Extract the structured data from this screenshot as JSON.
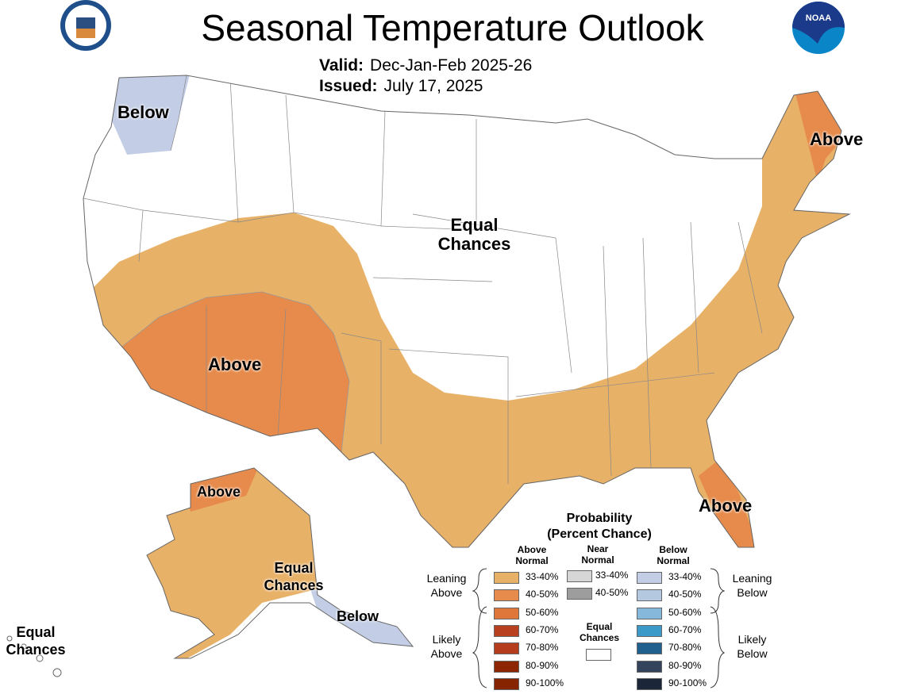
{
  "header": {
    "title": "Seasonal Temperature Outlook",
    "valid_label": "Valid:",
    "valid_value": "Dec-Jan-Feb 2025-26",
    "issued_label": "Issued:",
    "issued_value": "July 17, 2025",
    "left_logo": "DEPARTMENT OF COMMERCE",
    "right_logo": "NOAA"
  },
  "map_labels": {
    "nw_below": "Below",
    "ne_above": "Above",
    "center_ec": "Equal Chances",
    "sw_above": "Above",
    "fl_above": "Above",
    "ak_above": "Above",
    "ak_ec": "Equal Chances",
    "ak_below": "Below",
    "hi_ec": "Equal Chances"
  },
  "colors": {
    "above_33_40": "#e8b168",
    "above_40_50": "#e68b4b",
    "below_33_40": "#c3cde5",
    "equal_chances": "#ffffff"
  },
  "legend": {
    "title": "Probability",
    "subtitle": "(Percent Chance)",
    "above_header": "Above Normal",
    "near_header": "Near Normal",
    "below_header": "Below Normal",
    "leaning_above": "Leaning Above",
    "likely_above": "Likely Above",
    "leaning_below": "Leaning Below",
    "likely_below": "Likely Below",
    "equal_chances": "Equal Chances",
    "above": [
      {
        "label": "33-40%",
        "color": "#e8b168"
      },
      {
        "label": "40-50%",
        "color": "#e68b4b"
      },
      {
        "label": "50-60%",
        "color": "#e0773a"
      },
      {
        "label": "60-70%",
        "color": "#b9401f"
      },
      {
        "label": "70-80%",
        "color": "#b53d1e"
      },
      {
        "label": "80-90%",
        "color": "#8c2500"
      },
      {
        "label": "90-100%",
        "color": "#872400"
      }
    ],
    "near": [
      {
        "label": "33-40%",
        "color": "#d6d6d6"
      },
      {
        "label": "40-50%",
        "color": "#9d9d9d"
      }
    ],
    "below": [
      {
        "label": "33-40%",
        "color": "#c3cde5"
      },
      {
        "label": "40-50%",
        "color": "#b4c8df"
      },
      {
        "label": "50-60%",
        "color": "#86b8dc"
      },
      {
        "label": "60-70%",
        "color": "#3c9ac8"
      },
      {
        "label": "70-80%",
        "color": "#20608f"
      },
      {
        "label": "80-90%",
        "color": "#34445c"
      },
      {
        "label": "90-100%",
        "color": "#1b2638"
      }
    ]
  }
}
